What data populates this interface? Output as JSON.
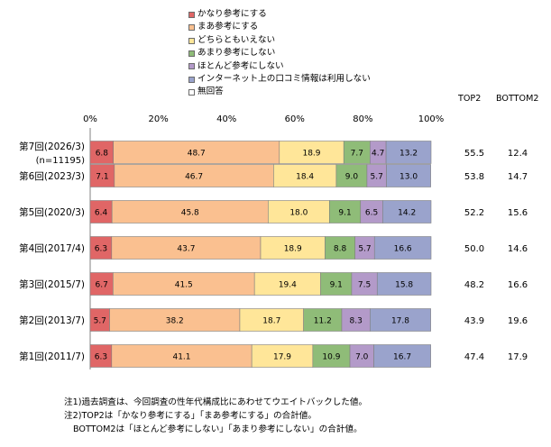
{
  "chart_data": {
    "type": "bar",
    "orientation": "horizontal",
    "stacked": true,
    "xlim": [
      0,
      100
    ],
    "x_ticks": [
      "0%",
      "20%",
      "40%",
      "60%",
      "80%",
      "100%"
    ],
    "categories": [
      {
        "label": "第7回(2026/3)",
        "sublabel": "(n=11195)"
      },
      {
        "label": "第6回(2023/3)",
        "sublabel": ""
      },
      {
        "label": "第5回(2020/3)",
        "sublabel": ""
      },
      {
        "label": "第4回(2017/4)",
        "sublabel": ""
      },
      {
        "label": "第3回(2015/7)",
        "sublabel": ""
      },
      {
        "label": "第2回(2013/7)",
        "sublabel": ""
      },
      {
        "label": "第1回(2011/7)",
        "sublabel": ""
      }
    ],
    "series": [
      {
        "name": "かなり参考にする",
        "color": "#e06666",
        "values": [
          6.8,
          7.1,
          6.4,
          6.3,
          6.7,
          5.7,
          6.3
        ]
      },
      {
        "name": "まあ参考にする",
        "color": "#fac090",
        "values": [
          48.7,
          46.7,
          45.8,
          43.7,
          41.5,
          38.2,
          41.1
        ]
      },
      {
        "name": "どちらともいえない",
        "color": "#ffe699",
        "values": [
          18.9,
          18.4,
          18.0,
          18.9,
          19.4,
          18.7,
          17.9
        ]
      },
      {
        "name": "あまり参考にしない",
        "color": "#8fbc78",
        "values": [
          7.7,
          9.0,
          9.1,
          8.8,
          9.1,
          11.2,
          10.9
        ]
      },
      {
        "name": "ほとんど参考にしない",
        "color": "#b39ac9",
        "values": [
          4.7,
          5.7,
          6.5,
          5.7,
          7.5,
          8.3,
          7.0
        ]
      },
      {
        "name": "インターネット上の口コミ情報は利用しない",
        "color": "#9aa3cc",
        "values": [
          13.2,
          13.0,
          14.2,
          16.6,
          15.8,
          17.8,
          16.7
        ]
      },
      {
        "name": "無回答",
        "color": "#ffffff",
        "values": [
          0,
          0,
          0,
          0,
          0,
          0,
          0
        ]
      }
    ],
    "summary_columns": [
      {
        "header": "TOP2",
        "values": [
          "55.5",
          "53.8",
          "52.2",
          "50.0",
          "48.2",
          "43.9",
          "47.4"
        ]
      },
      {
        "header": "BOTTOM2",
        "values": [
          "12.4",
          "14.7",
          "15.6",
          "14.6",
          "16.6",
          "19.6",
          "17.9"
        ]
      }
    ],
    "legend_position": "top",
    "grid": false
  },
  "notes": [
    "注1)過去調査は、今回調査の性年代構成比にあわせてウエイトバックした値。",
    "注2)TOP2は「かなり参考にする」「まあ参考にする」の合計値。",
    "BOTTOM2は「ほとんど参考にしない」「あまり参考にしない」の合計値。"
  ]
}
